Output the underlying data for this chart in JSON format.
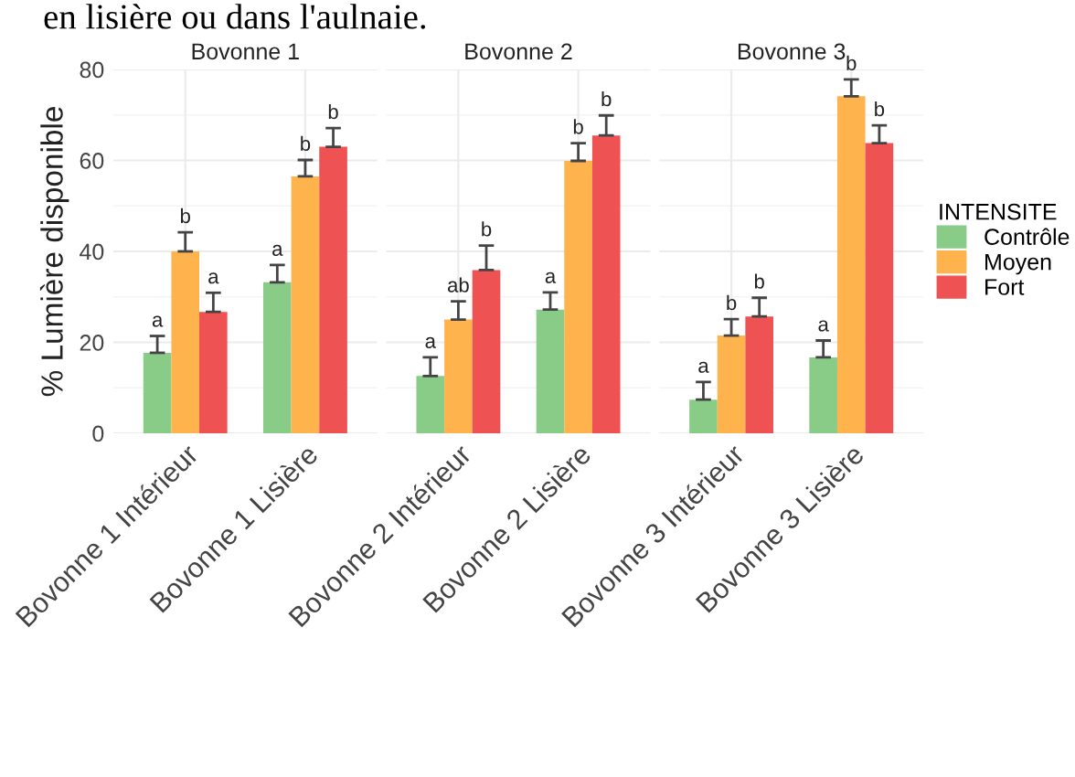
{
  "chart_data": [
    {
      "type": "bar",
      "title": "Bovonne 1",
      "ylabel": "% Lumière disponible",
      "annotations": [
        "en lisière ou dans l'aulnaie."
      ],
      "categories": [
        "Bovonne 1 Intérieur",
        "Bovonne 1 Lisière"
      ],
      "ylim": [
        0,
        80
      ],
      "yticks": [
        0,
        20,
        40,
        60,
        80
      ],
      "grid": true,
      "legend": "right",
      "legend_title": "INTENSITE",
      "series": [
        {
          "name": "Contrôle",
          "color": "#88cc88",
          "values": [
            17.7,
            33.2
          ],
          "errors": [
            [
              17.7,
              21.4
            ],
            [
              33.2,
              37.0
            ]
          ],
          "value_labels": [
            "a",
            "a"
          ]
        },
        {
          "name": "Moyen",
          "color": "#ffb34d",
          "values": [
            40.0,
            56.5
          ],
          "errors": [
            [
              40.0,
              44.2
            ],
            [
              56.5,
              60.1
            ]
          ],
          "value_labels": [
            "b",
            "b"
          ]
        },
        {
          "name": "Fort",
          "color": "#ee5252",
          "values": [
            26.7,
            63.0
          ],
          "errors": [
            [
              26.7,
              30.9
            ],
            [
              63.0,
              67.1
            ]
          ],
          "value_labels": [
            "a",
            "b"
          ]
        }
      ]
    },
    {
      "type": "bar",
      "title": "Bovonne 2",
      "categories": [
        "Bovonne 2 Intérieur",
        "Bovonne 2 Lisière"
      ],
      "ylim": [
        0,
        80
      ],
      "tick_labels": "x",
      "grid": true,
      "series": [
        {
          "color": "#88cc88",
          "values": [
            12.6,
            27.2
          ],
          "errors": [
            [
              12.6,
              16.7
            ],
            [
              27.2,
              31.0
            ]
          ],
          "value_labels": [
            "a",
            "a"
          ]
        },
        {
          "color": "#ffb34d",
          "values": [
            25.0,
            59.9
          ],
          "errors": [
            [
              25.0,
              29.0
            ],
            [
              59.9,
              63.8
            ]
          ],
          "value_labels": [
            "ab",
            "b"
          ]
        },
        {
          "color": "#ee5252",
          "values": [
            35.9,
            65.5
          ],
          "errors": [
            [
              35.9,
              41.3
            ],
            [
              65.5,
              69.9
            ]
          ],
          "value_labels": [
            "b",
            "b"
          ]
        }
      ]
    },
    {
      "type": "bar",
      "title": "Bovonne 3",
      "categories": [
        "Bovonne 3 Intérieur",
        "Bovonne 3 Lisière"
      ],
      "ylim": [
        0,
        80
      ],
      "tick_labels": "x",
      "grid": true,
      "series": [
        {
          "color": "#88cc88",
          "values": [
            7.4,
            16.7
          ],
          "errors": [
            [
              7.4,
              11.3
            ],
            [
              16.7,
              20.4
            ]
          ],
          "value_labels": [
            "a",
            "a"
          ]
        },
        {
          "color": "#ffb34d",
          "values": [
            21.5,
            74.1
          ],
          "errors": [
            [
              21.5,
              25.1
            ],
            [
              74.1,
              77.8
            ]
          ],
          "value_labels": [
            "b",
            "b"
          ]
        },
        {
          "color": "#ee5252",
          "values": [
            25.7,
            63.8
          ],
          "errors": [
            [
              25.7,
              29.8
            ],
            [
              63.8,
              67.7
            ]
          ],
          "value_labels": [
            "b",
            "b"
          ]
        }
      ]
    }
  ]
}
